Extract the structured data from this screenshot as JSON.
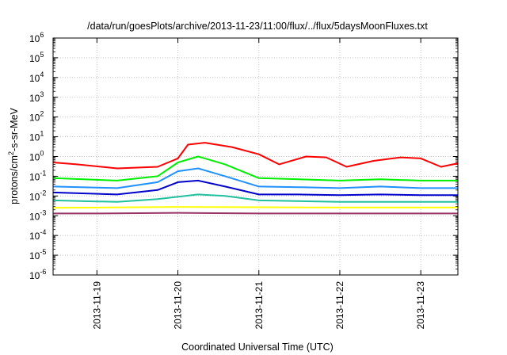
{
  "chart_data": {
    "type": "line",
    "title": "/data/run/goesPlots/archive/2013-11-23/11:00/flux/../flux/5daysMoonFluxes.txt",
    "xlabel": "Coordinated Universal Time (UTC)",
    "ylabel": {
      "base": "protons/cm",
      "sup": "2",
      "rest": "-s-sr-MeV"
    },
    "y_scale": "log",
    "ylim_exponent": [
      -6,
      6
    ],
    "y_tick_base": "10",
    "y_tick_exponents": [
      "6",
      "5",
      "4",
      "3",
      "2",
      "1",
      "0",
      "-1",
      "-2",
      "-3",
      "-4",
      "-5",
      "-6"
    ],
    "xlim": [
      "2013-11-18T11:00",
      "2013-11-23T11:00"
    ],
    "x_ticks": [
      {
        "label": "2013-11-19",
        "value": "2013-11-19T00:00"
      },
      {
        "label": "2013-11-20",
        "value": "2013-11-20T00:00"
      },
      {
        "label": "2013-11-21",
        "value": "2013-11-21T00:00"
      },
      {
        "label": "2013-11-22",
        "value": "2013-11-22T00:00"
      },
      {
        "label": "2013-11-23",
        "value": "2013-11-23T00:00"
      }
    ],
    "grid": true,
    "series": [
      {
        "color": "#ff0000",
        "x": [
          "2013-11-18T11:00",
          "2013-11-18T18:00",
          "2013-11-19T06:00",
          "2013-11-19T18:00",
          "2013-11-20T00:00",
          "2013-11-20T03:00",
          "2013-11-20T08:00",
          "2013-11-20T16:00",
          "2013-11-21T00:00",
          "2013-11-21T06:00",
          "2013-11-21T14:00",
          "2013-11-21T20:00",
          "2013-11-22T02:00",
          "2013-11-22T10:00",
          "2013-11-22T18:00",
          "2013-11-23T00:00",
          "2013-11-23T06:00",
          "2013-11-23T11:00"
        ],
        "y": [
          0.5,
          0.4,
          0.25,
          0.3,
          0.8,
          4,
          5,
          3,
          1.3,
          0.4,
          1.0,
          0.9,
          0.3,
          0.6,
          0.9,
          0.8,
          0.3,
          0.45
        ]
      },
      {
        "color": "#00ee00",
        "x": [
          "2013-11-18T11:00",
          "2013-11-19T06:00",
          "2013-11-19T18:00",
          "2013-11-20T00:00",
          "2013-11-20T06:00",
          "2013-11-20T14:00",
          "2013-11-21T00:00",
          "2013-11-21T12:00",
          "2013-11-22T00:00",
          "2013-11-22T12:00",
          "2013-11-23T00:00",
          "2013-11-23T11:00"
        ],
        "y": [
          0.08,
          0.06,
          0.1,
          0.5,
          1.0,
          0.4,
          0.08,
          0.07,
          0.06,
          0.07,
          0.06,
          0.06
        ]
      },
      {
        "color": "#1e90ff",
        "x": [
          "2013-11-18T11:00",
          "2013-11-19T06:00",
          "2013-11-19T18:00",
          "2013-11-20T00:00",
          "2013-11-20T06:00",
          "2013-11-20T14:00",
          "2013-11-21T00:00",
          "2013-11-21T12:00",
          "2013-11-22T00:00",
          "2013-11-22T12:00",
          "2013-11-23T00:00",
          "2013-11-23T11:00"
        ],
        "y": [
          0.03,
          0.025,
          0.05,
          0.18,
          0.25,
          0.1,
          0.03,
          0.028,
          0.025,
          0.03,
          0.025,
          0.025
        ]
      },
      {
        "color": "#0000cc",
        "x": [
          "2013-11-18T11:00",
          "2013-11-19T06:00",
          "2013-11-19T18:00",
          "2013-11-20T00:00",
          "2013-11-20T06:00",
          "2013-11-20T14:00",
          "2013-11-21T00:00",
          "2013-11-21T12:00",
          "2013-11-22T00:00",
          "2013-11-22T12:00",
          "2013-11-23T00:00",
          "2013-11-23T11:00"
        ],
        "y": [
          0.015,
          0.012,
          0.02,
          0.05,
          0.06,
          0.03,
          0.012,
          0.012,
          0.011,
          0.012,
          0.011,
          0.011
        ]
      },
      {
        "color": "#20c0a0",
        "x": [
          "2013-11-18T11:00",
          "2013-11-19T06:00",
          "2013-11-19T18:00",
          "2013-11-20T06:00",
          "2013-11-20T14:00",
          "2013-11-21T00:00",
          "2013-11-22T00:00",
          "2013-11-23T11:00"
        ],
        "y": [
          0.006,
          0.005,
          0.007,
          0.012,
          0.01,
          0.006,
          0.005,
          0.005
        ]
      },
      {
        "color": "#ffff00",
        "x": [
          "2013-11-18T11:00",
          "2013-11-20T00:00",
          "2013-11-21T00:00",
          "2013-11-22T00:00",
          "2013-11-23T11:00"
        ],
        "y": [
          0.0025,
          0.0028,
          0.0027,
          0.0026,
          0.0026
        ]
      },
      {
        "color": "#993366",
        "x": [
          "2013-11-18T11:00",
          "2013-11-19T00:00",
          "2013-11-20T00:00",
          "2013-11-21T00:00",
          "2013-11-22T00:00",
          "2013-11-23T00:00",
          "2013-11-23T11:00"
        ],
        "y": [
          0.0013,
          0.0013,
          0.0014,
          0.0013,
          0.0013,
          0.0013,
          0.0013
        ]
      }
    ]
  }
}
